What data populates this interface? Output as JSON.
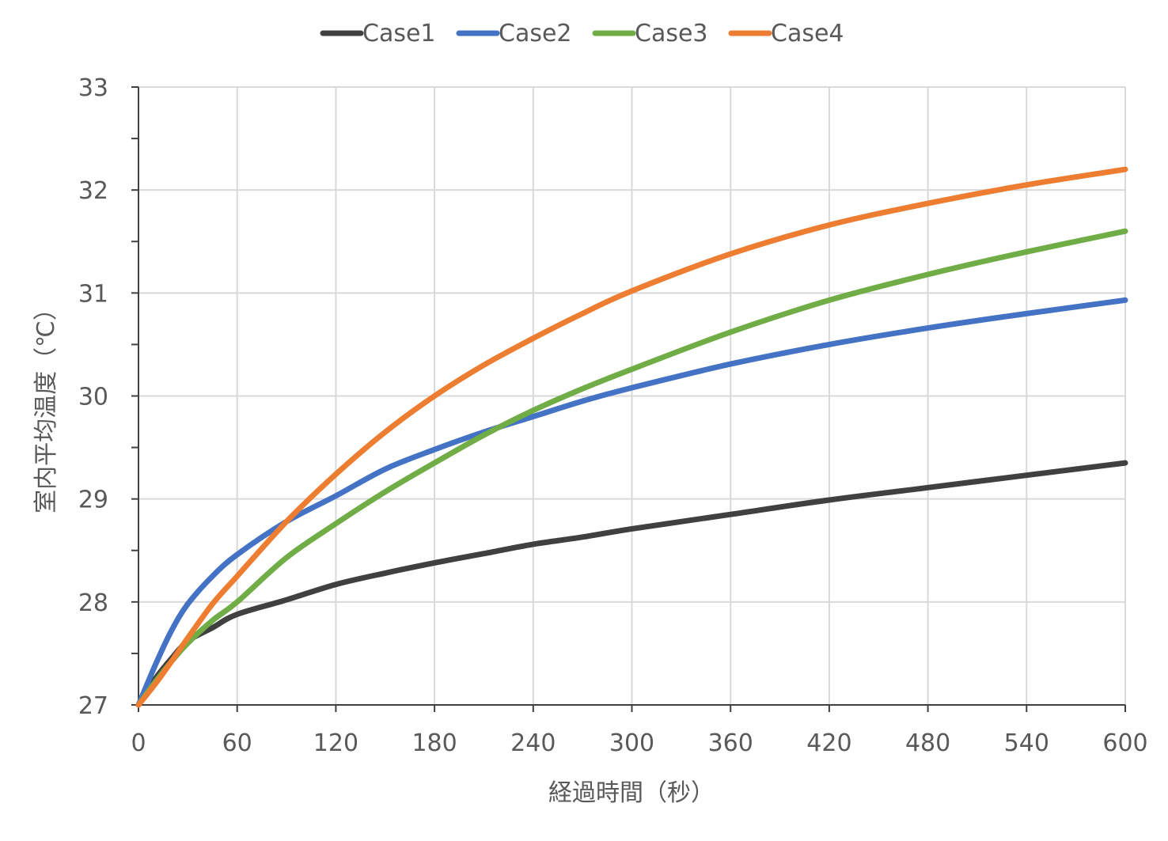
{
  "chart_data": {
    "type": "line",
    "title": "",
    "xlabel": "経過時間（秒）",
    "ylabel": "室内平均温度（℃）",
    "xlim": [
      0,
      600
    ],
    "ylim": [
      27,
      33
    ],
    "xticks": [
      0,
      60,
      120,
      180,
      240,
      300,
      360,
      420,
      480,
      540,
      600
    ],
    "yticks": [
      27,
      28,
      29,
      30,
      31,
      32,
      33
    ],
    "grid": true,
    "legend": "top",
    "x": [
      0,
      10,
      20,
      30,
      45,
      60,
      90,
      120,
      150,
      180,
      210,
      240,
      270,
      300,
      360,
      420,
      480,
      540,
      600
    ],
    "series": [
      {
        "name": "Case1",
        "color": "#404040",
        "values": [
          27.0,
          27.25,
          27.45,
          27.62,
          27.75,
          27.88,
          28.02,
          28.17,
          28.28,
          28.38,
          28.47,
          28.56,
          28.63,
          28.71,
          28.85,
          28.99,
          29.11,
          29.23,
          29.35
        ]
      },
      {
        "name": "Case2",
        "color": "#4472C4",
        "values": [
          27.0,
          27.38,
          27.72,
          27.98,
          28.25,
          28.46,
          28.78,
          29.03,
          29.29,
          29.48,
          29.65,
          29.8,
          29.95,
          30.08,
          30.31,
          30.5,
          30.66,
          30.8,
          30.93
        ]
      },
      {
        "name": "Case3",
        "color": "#70AD47",
        "values": [
          27.0,
          27.22,
          27.42,
          27.6,
          27.82,
          28.0,
          28.43,
          28.76,
          29.07,
          29.35,
          29.62,
          29.86,
          30.07,
          30.26,
          30.62,
          30.93,
          31.18,
          31.4,
          31.6
        ]
      },
      {
        "name": "Case4",
        "color": "#ED7D31",
        "values": [
          27.0,
          27.2,
          27.42,
          27.65,
          27.98,
          28.25,
          28.78,
          29.24,
          29.65,
          30.0,
          30.3,
          30.56,
          30.8,
          31.02,
          31.38,
          31.66,
          31.87,
          32.05,
          32.2
        ]
      }
    ]
  }
}
